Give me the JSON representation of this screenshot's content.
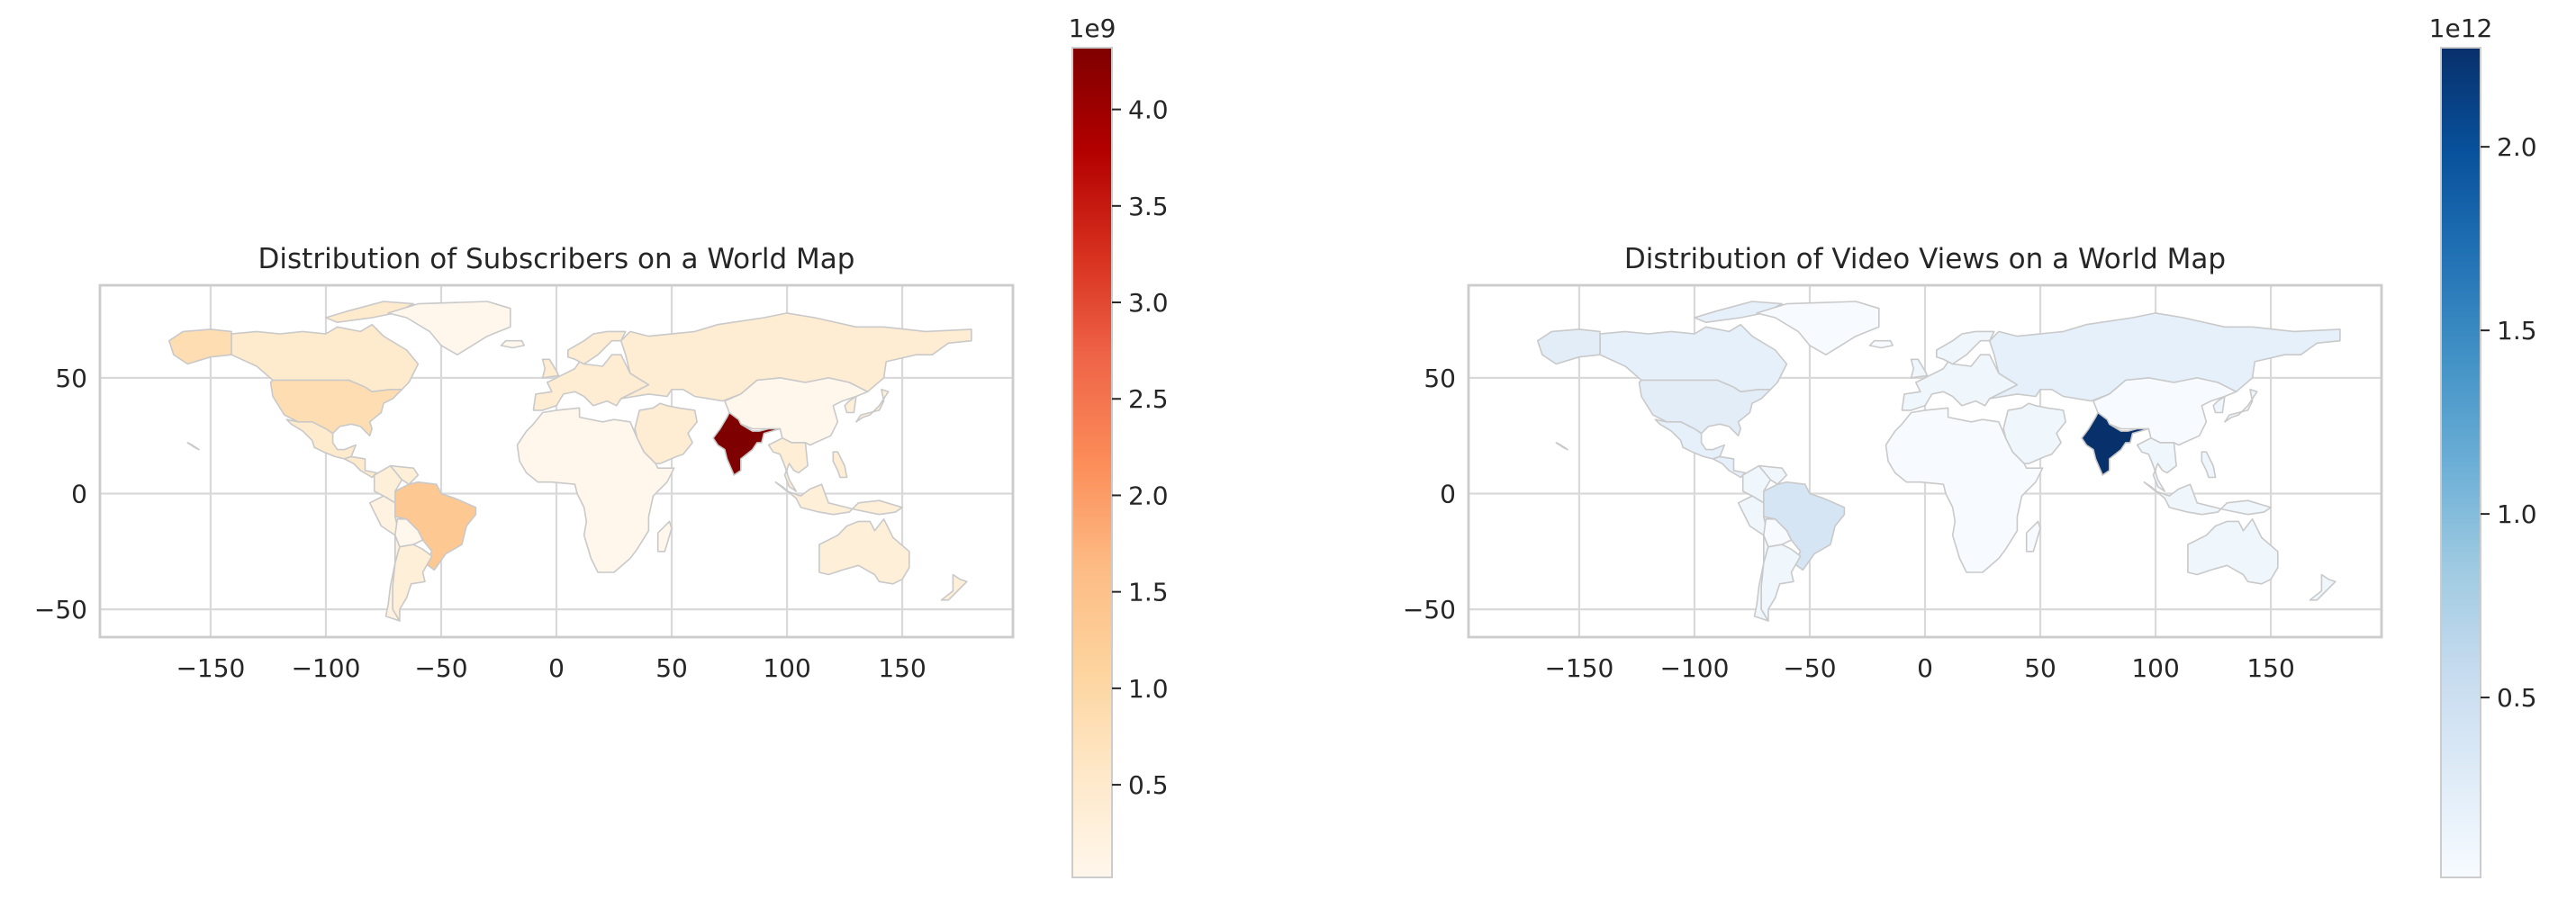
{
  "figure": {
    "maps": [
      {
        "id": "subscribers",
        "title": "Distribution of Subscribers on a World Map",
        "xticks": [
          "−150",
          "−100",
          "−50",
          "0",
          "50",
          "100",
          "150"
        ],
        "xtick_values": [
          -150,
          -100,
          -50,
          0,
          50,
          100,
          150
        ],
        "yticks": [
          "50",
          "0",
          "−50"
        ],
        "ytick_values": [
          50,
          0,
          -50
        ],
        "xlim": [
          -198,
          198
        ],
        "ylim": [
          -62,
          90
        ],
        "colorbar": {
          "colormap": "OrRd",
          "stops": [
            "#fff7ec",
            "#fee8c8",
            "#fdd49e",
            "#fdbb84",
            "#fc8d59",
            "#ef6548",
            "#d7301f",
            "#b30000",
            "#7f0000"
          ],
          "range": [
            0.02,
            4.32
          ],
          "ticks": [
            "0.5",
            "1.0",
            "1.5",
            "2.0",
            "2.5",
            "3.0",
            "3.5",
            "4.0"
          ],
          "tick_values": [
            0.5,
            1.0,
            1.5,
            2.0,
            2.5,
            3.0,
            3.5,
            4.0
          ],
          "exponent": "1e9"
        },
        "regions": {
          "india": 4.32,
          "brazil": 1.35,
          "usa": 0.85,
          "canada": 0.5,
          "russia": 0.4,
          "mexico": 0.5,
          "argentina": 0.3,
          "chile": 0.2,
          "peru": 0.2,
          "colombia": 0.3,
          "china": 0.02,
          "australia": 0.3,
          "europe": 0.4,
          "africa": 0.02,
          "middle_east": 0.4,
          "southeast_asia": 0.35,
          "japan": 0.3,
          "indonesia": 0.3,
          "greenland": 0.02,
          "other": 0.02
        }
      },
      {
        "id": "views",
        "title": "Distribution of Video Views on a World Map",
        "xticks": [
          "−150",
          "−100",
          "−50",
          "0",
          "50",
          "100",
          "150"
        ],
        "xtick_values": [
          -150,
          -100,
          -50,
          0,
          50,
          100,
          150
        ],
        "yticks": [
          "50",
          "0",
          "−50"
        ],
        "ytick_values": [
          50,
          0,
          -50
        ],
        "xlim": [
          -198,
          198
        ],
        "ylim": [
          -62,
          90
        ],
        "colorbar": {
          "colormap": "Blues",
          "stops": [
            "#f7fbff",
            "#deebf7",
            "#c6dbef",
            "#9ecae1",
            "#6baed6",
            "#4292c6",
            "#2171b5",
            "#08519c",
            "#08306b"
          ],
          "range": [
            0.01,
            2.27
          ],
          "ticks": [
            "0.5",
            "1.0",
            "1.5",
            "2.0"
          ],
          "tick_values": [
            0.5,
            1.0,
            1.5,
            2.0
          ],
          "exponent": "1e12"
        },
        "regions": {
          "india": 2.27,
          "brazil": 0.4,
          "usa": 0.25,
          "canada": 0.2,
          "russia": 0.2,
          "mexico": 0.2,
          "argentina": 0.1,
          "chile": 0.1,
          "peru": 0.1,
          "colombia": 0.1,
          "china": 0.01,
          "australia": 0.1,
          "europe": 0.1,
          "africa": 0.01,
          "middle_east": 0.1,
          "southeast_asia": 0.1,
          "japan": 0.1,
          "indonesia": 0.1,
          "greenland": 0.01,
          "other": 0.01
        }
      }
    ]
  }
}
